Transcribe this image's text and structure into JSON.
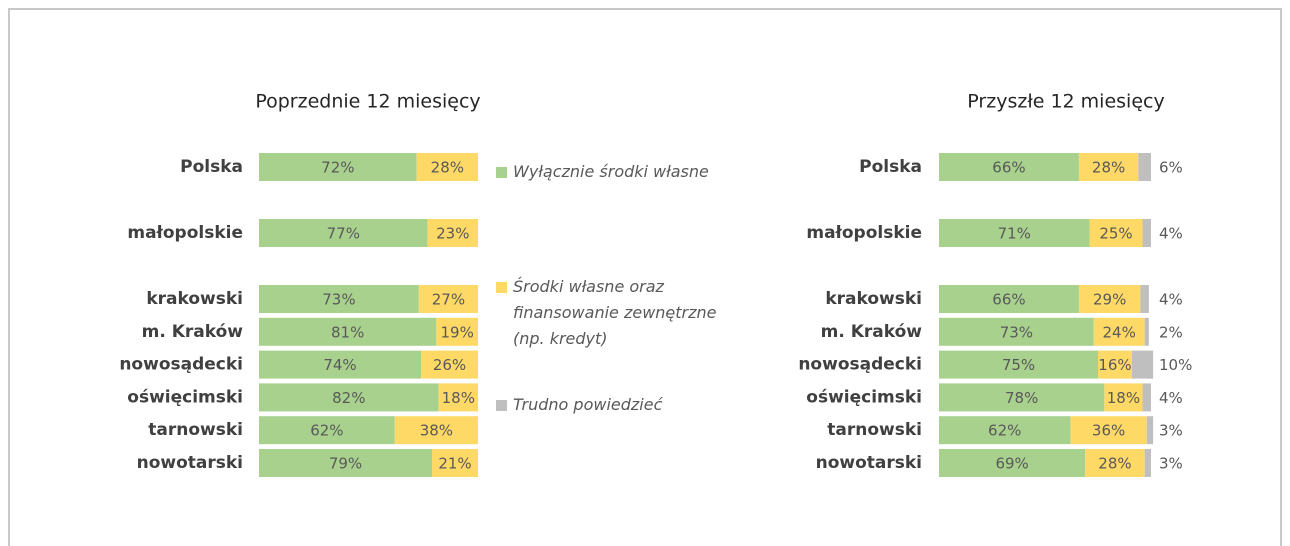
{
  "chart_data": [
    {
      "type": "bar",
      "title": "Poprzednie 12 miesięcy",
      "categories": [
        "Polska",
        "małopolskie",
        "krakowski",
        "m. Kraków",
        "nowosądecki",
        "oświęcimski",
        "tarnowski",
        "nowotarski"
      ],
      "xlim": [
        0,
        100
      ],
      "series": [
        {
          "name": "Wyłącznie środki własne",
          "color": "#a9d18e",
          "values": [
            72,
            77,
            73,
            81,
            74,
            82,
            62,
            79
          ],
          "value_labels": [
            "72%",
            "77%",
            "73%",
            "81%",
            "74%",
            "82%",
            "62%",
            "79%"
          ]
        },
        {
          "name": "Środki własne oraz finansowanie zewnętrzne (np. kredyt)",
          "color": "#ffd966",
          "values": [
            28,
            23,
            27,
            19,
            26,
            18,
            38,
            21
          ],
          "value_labels": [
            "28%",
            "23%",
            "27%",
            "19%",
            "26%",
            "18%",
            "38%",
            "21%"
          ]
        },
        {
          "name": "Trudno powiedzieć",
          "color": "#bfbfbf",
          "values": [
            null,
            null,
            null,
            null,
            null,
            null,
            null,
            null
          ]
        }
      ]
    },
    {
      "type": "bar",
      "title": "Przyszłe 12 miesięcy",
      "categories": [
        "Polska",
        "małopolskie",
        "krakowski",
        "m. Kraków",
        "nowosądecki",
        "oświęcimski",
        "tarnowski",
        "nowotarski"
      ],
      "xlim": [
        0,
        100
      ],
      "series": [
        {
          "color": "#a9d18e",
          "values": [
            66,
            71,
            66,
            73,
            75,
            78,
            62,
            69
          ],
          "value_labels": [
            "66%",
            "71%",
            "66%",
            "73%",
            "75%",
            "78%",
            "62%",
            "69%"
          ]
        },
        {
          "color": "#ffd966",
          "values": [
            28,
            25,
            29,
            24,
            16,
            18,
            36,
            28
          ],
          "value_labels": [
            "28%",
            "25%",
            "29%",
            "24%",
            "16%",
            "18%",
            "36%",
            "28%"
          ]
        },
        {
          "color": "#bfbfbf",
          "values": [
            6,
            4,
            4,
            2,
            10,
            4,
            3,
            3
          ],
          "value_labels": [
            "6%",
            "4%",
            "4%",
            "2%",
            "10%",
            "4%",
            "3%",
            "3%"
          ]
        }
      ]
    }
  ]
}
